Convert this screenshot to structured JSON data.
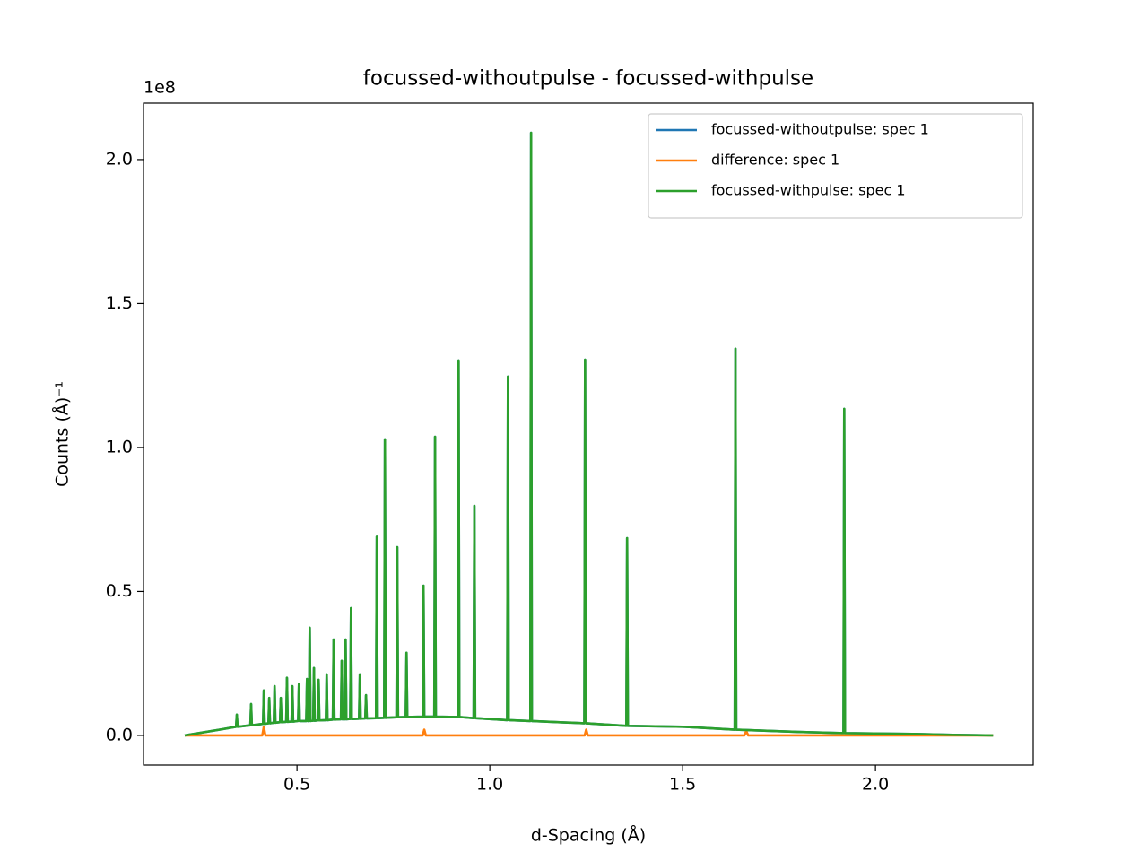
{
  "chart_data": {
    "type": "line",
    "title": "focussed-withoutpulse - focussed-withpulse",
    "x_label": "d-Spacing (Å)",
    "y_label": "Counts (Å)⁻¹",
    "y_offset_label": "1e8",
    "xlim": [
      0.102,
      2.409
    ],
    "ylim": [
      -0.103,
      2.196
    ],
    "xticks": [
      0.5,
      {
        "value": 1,
        "label": "1.0"
      },
      1.5,
      {
        "value": 2,
        "label": "2.0"
      }
    ],
    "yticks": [
      {
        "value": 0,
        "label": "0.0"
      },
      0.5,
      {
        "value": 1,
        "label": "1.0"
      },
      1.5,
      {
        "value": 2,
        "label": "2.0"
      }
    ],
    "grid": false,
    "legend": "upper right",
    "x": [
      0.209,
      0.3,
      0.342,
      0.344,
      0.346,
      0.379,
      0.381,
      0.383,
      0.412,
      0.414,
      0.416,
      0.426,
      0.428,
      0.43,
      0.44,
      0.442,
      0.444,
      0.456,
      0.458,
      0.46,
      0.472,
      0.474,
      0.476,
      0.486,
      0.488,
      0.49,
      0.503,
      0.505,
      0.507,
      0.524,
      0.526,
      0.528,
      0.531,
      0.533,
      0.535,
      0.542,
      0.544,
      0.546,
      0.554,
      0.556,
      0.558,
      0.575,
      0.577,
      0.579,
      0.593,
      0.595,
      0.597,
      0.614,
      0.616,
      0.618,
      0.624,
      0.626,
      0.628,
      0.638,
      0.64,
      0.642,
      0.661,
      0.663,
      0.665,
      0.677,
      0.679,
      0.681,
      0.705,
      0.707,
      0.709,
      0.726,
      0.728,
      0.73,
      0.758,
      0.76,
      0.762,
      0.782,
      0.784,
      0.786,
      0.826,
      0.828,
      0.83,
      0.856,
      0.858,
      0.86,
      0.917,
      0.919,
      0.921,
      0.958,
      0.96,
      0.962,
      1.045,
      1.047,
      1.049,
      1.105,
      1.107,
      1.109,
      1.245,
      1.247,
      1.249,
      1.354,
      1.356,
      1.358,
      1.5,
      1.635,
      1.637,
      1.639,
      1.8,
      1.917,
      1.919,
      1.921,
      2.1,
      2.2,
      2.305
    ],
    "series": [
      {
        "name": "focussed-withoutpulse: spec 1",
        "color": "#1f77b4",
        "values": [
          0,
          0.02,
          0.03,
          0.072,
          0.03,
          0.035,
          0.109,
          0.035,
          0.04,
          0.156,
          0.04,
          0.042,
          0.13,
          0.042,
          0.044,
          0.171,
          0.044,
          0.046,
          0.13,
          0.046,
          0.047,
          0.2,
          0.047,
          0.048,
          0.171,
          0.048,
          0.05,
          0.178,
          0.05,
          0.05,
          0.196,
          0.05,
          0.05,
          0.374,
          0.05,
          0.051,
          0.234,
          0.051,
          0.052,
          0.193,
          0.052,
          0.053,
          0.212,
          0.053,
          0.055,
          0.333,
          0.055,
          0.056,
          0.259,
          0.056,
          0.056,
          0.333,
          0.056,
          0.057,
          0.442,
          0.057,
          0.058,
          0.212,
          0.058,
          0.059,
          0.14,
          0.059,
          0.06,
          0.69,
          0.06,
          0.061,
          1.028,
          0.061,
          0.063,
          0.654,
          0.063,
          0.064,
          0.287,
          0.064,
          0.065,
          0.52,
          0.065,
          0.065,
          1.037,
          0.065,
          0.064,
          1.302,
          0.064,
          0.06,
          0.797,
          0.06,
          0.053,
          1.246,
          0.053,
          0.05,
          2.093,
          0.05,
          0.042,
          1.305,
          0.042,
          0.033,
          0.685,
          0.033,
          0.03,
          0.02,
          1.343,
          0.02,
          0.012,
          0.008,
          1.134,
          0.008,
          0.005,
          0.002,
          0
        ]
      },
      {
        "name": "difference: spec 1",
        "color": "#ff7f0e",
        "x": [
          0.209,
          0.41,
          0.414,
          0.418,
          0.826,
          0.83,
          0.834,
          1.246,
          1.25,
          1.254,
          1.66,
          1.665,
          1.67,
          2.305
        ],
        "values": [
          0,
          0,
          0.03,
          0,
          0,
          0.02,
          0,
          0,
          0.02,
          0,
          0,
          0.015,
          0,
          0
        ]
      },
      {
        "name": "focussed-withpulse: spec 1",
        "color": "#2ca02c",
        "values": [
          0,
          0.02,
          0.03,
          0.072,
          0.03,
          0.035,
          0.109,
          0.035,
          0.04,
          0.156,
          0.04,
          0.042,
          0.13,
          0.042,
          0.044,
          0.171,
          0.044,
          0.046,
          0.13,
          0.046,
          0.047,
          0.2,
          0.047,
          0.048,
          0.171,
          0.048,
          0.05,
          0.178,
          0.05,
          0.05,
          0.196,
          0.05,
          0.05,
          0.374,
          0.05,
          0.051,
          0.234,
          0.051,
          0.052,
          0.193,
          0.052,
          0.053,
          0.212,
          0.053,
          0.055,
          0.333,
          0.055,
          0.056,
          0.259,
          0.056,
          0.056,
          0.333,
          0.056,
          0.057,
          0.442,
          0.057,
          0.058,
          0.212,
          0.058,
          0.059,
          0.14,
          0.059,
          0.06,
          0.69,
          0.06,
          0.061,
          1.028,
          0.061,
          0.063,
          0.654,
          0.063,
          0.064,
          0.287,
          0.064,
          0.065,
          0.52,
          0.065,
          0.065,
          1.037,
          0.065,
          0.064,
          1.302,
          0.064,
          0.06,
          0.797,
          0.06,
          0.053,
          1.246,
          0.053,
          0.05,
          2.093,
          0.05,
          0.042,
          1.305,
          0.042,
          0.033,
          0.685,
          0.033,
          0.03,
          0.02,
          1.343,
          0.02,
          0.012,
          0.008,
          1.134,
          0.008,
          0.005,
          0.002,
          0
        ]
      }
    ]
  }
}
